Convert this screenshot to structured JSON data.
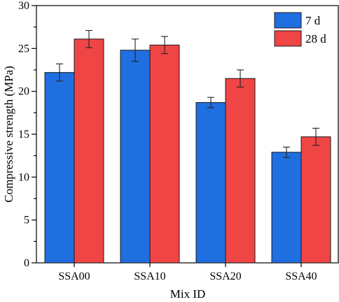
{
  "chart_data": {
    "type": "bar",
    "title": "",
    "xlabel": "Mix ID",
    "ylabel": "Compressive strength (MPa)",
    "ylim": [
      0,
      30
    ],
    "yticks": [
      0,
      5,
      10,
      15,
      20,
      25,
      30
    ],
    "categories": [
      "SSA00",
      "SSA10",
      "SSA20",
      "SSA40"
    ],
    "series": [
      {
        "name": "7 d",
        "color": "#1f6fe0",
        "values": [
          22.2,
          24.8,
          18.7,
          12.9
        ],
        "errors": [
          1.0,
          1.3,
          0.6,
          0.6
        ]
      },
      {
        "name": "28 d",
        "color": "#f04545",
        "values": [
          26.1,
          25.4,
          21.5,
          14.7
        ],
        "errors": [
          1.0,
          1.0,
          1.0,
          1.0
        ]
      }
    ],
    "error_bars": true,
    "grid": false,
    "legend_position": "top-right"
  }
}
